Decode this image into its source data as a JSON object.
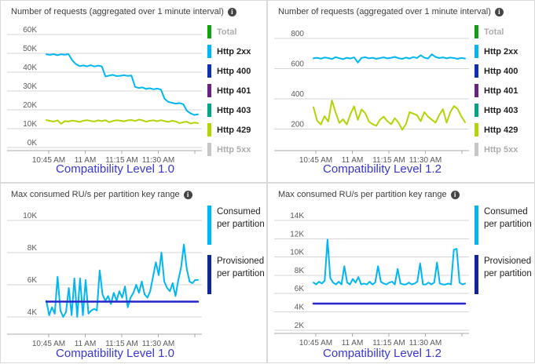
{
  "info_glyph": "i",
  "chart_data": [
    {
      "type": "line",
      "title": "Number of requests (aggregated over 1 minute interval)",
      "caption": "Compatibility Level 1.0",
      "x_tick_labels": [
        "10:45 AM",
        "11 AM",
        "11:15 AM",
        "11:30 AM"
      ],
      "y_tick_labels": [
        "60K",
        "50K",
        "40K",
        "30K",
        "20K",
        "10K",
        "0K"
      ],
      "y_top": 60000,
      "y_step": 10000,
      "legend": [
        {
          "label": "Total",
          "color": "#11a011",
          "dimmed": true
        },
        {
          "label": "Http 2xx",
          "color": "#00b7f2",
          "dimmed": false
        },
        {
          "label": "Http 400",
          "color": "#0b30b5",
          "dimmed": false
        },
        {
          "label": "Http 401",
          "color": "#6a2181",
          "dimmed": false
        },
        {
          "label": "Http 403",
          "color": "#00a583",
          "dimmed": false
        },
        {
          "label": "Http 429",
          "color": "#b6d308",
          "dimmed": false
        },
        {
          "label": "Http 5xx",
          "color": "#c6c6c6",
          "dimmed": true
        }
      ],
      "series": [
        {
          "name": "Http 2xx",
          "color": "#00b7f2",
          "width": 2,
          "values": [
            49500,
            49200,
            49600,
            49000,
            49500,
            49300,
            49600,
            46300,
            44300,
            43200,
            43600,
            43100,
            43700,
            43000,
            43500,
            43100,
            37700,
            38200,
            38600,
            37900,
            38100,
            38400,
            38000,
            38200,
            32200,
            31600,
            31900,
            31100,
            31500,
            30900,
            31300,
            30700,
            25800,
            24200,
            23700,
            23300,
            23600,
            23000,
            19500,
            18100,
            17300,
            17600
          ]
        },
        {
          "name": "Http 429",
          "color": "#b6d308",
          "width": 2,
          "values": [
            14600,
            14100,
            13800,
            14400,
            12600,
            14000,
            13800,
            14300,
            14000,
            13600,
            14200,
            14500,
            14100,
            13800,
            14400,
            14000,
            14500,
            13400,
            14100,
            14500,
            14200,
            13900,
            14400,
            14600,
            14100,
            14800,
            14400,
            13700,
            14200,
            14400,
            13900,
            14500,
            14000,
            13600,
            14200,
            13800,
            12900,
            13400,
            13700,
            12700,
            13200,
            12900
          ]
        }
      ]
    },
    {
      "type": "line",
      "title": "Number of requests (aggregated over 1 minute interval)",
      "caption": "Compatibility Level 1.2",
      "x_tick_labels": [
        "10:45 AM",
        "11 AM",
        "11:15 AM",
        "11:30 AM"
      ],
      "y_tick_labels": [
        "800",
        "600",
        "400",
        "200"
      ],
      "y_top": 800,
      "y_step": 200,
      "legend": [
        {
          "label": "Total",
          "color": "#11a011",
          "dimmed": true
        },
        {
          "label": "Http 2xx",
          "color": "#00b7f2",
          "dimmed": false
        },
        {
          "label": "Http 400",
          "color": "#0b30b5",
          "dimmed": false
        },
        {
          "label": "Http 401",
          "color": "#6a2181",
          "dimmed": false
        },
        {
          "label": "Http 403",
          "color": "#00a583",
          "dimmed": false
        },
        {
          "label": "Http 429",
          "color": "#b6d308",
          "dimmed": false
        },
        {
          "label": "Http 5xx",
          "color": "#c6c6c6",
          "dimmed": true
        }
      ],
      "series": [
        {
          "name": "Http 2xx",
          "color": "#00b7f2",
          "width": 2,
          "values": [
            668,
            672,
            666,
            674,
            670,
            664,
            676,
            669,
            663,
            672,
            667,
            675,
            640,
            671,
            676,
            668,
            672,
            665,
            670,
            675,
            668,
            672,
            678,
            669,
            665,
            673,
            667,
            677,
            670,
            689,
            672,
            667,
            695,
            678,
            670,
            675,
            668,
            673,
            670,
            665,
            671,
            667
          ]
        },
        {
          "name": "Http 429",
          "color": "#b6d308",
          "width": 2,
          "values": [
            345,
            255,
            230,
            285,
            250,
            390,
            310,
            240,
            265,
            230,
            300,
            350,
            260,
            330,
            305,
            250,
            232,
            222,
            262,
            282,
            252,
            232,
            272,
            242,
            196,
            232,
            312,
            302,
            292,
            252,
            312,
            282,
            262,
            242,
            292,
            332,
            242,
            312,
            352,
            332,
            282,
            245
          ]
        }
      ]
    },
    {
      "type": "line",
      "title": "Max consumed RU/s per partition key range",
      "caption": "Compatibility Level 1.0",
      "x_tick_labels": [
        "10:45 AM",
        "11 AM",
        "11:15 AM",
        "11:30 AM"
      ],
      "y_tick_labels": [
        "10K",
        "8K",
        "6K",
        "4K"
      ],
      "y_top": 10000,
      "y_step": 2000,
      "legend": [
        {
          "label": "Consumed per partition",
          "color": "#00b7f2",
          "dimmed": false
        },
        {
          "label": "Provisioned per partition",
          "color": "#10249b",
          "dimmed": false
        }
      ],
      "series": [
        {
          "name": "Consumed per partition",
          "color": "#00b7f2",
          "width": 2,
          "values": [
            5000,
            4100,
            4600,
            4200,
            6500,
            4400,
            4000,
            4300,
            5800,
            4100,
            6400,
            4000,
            6400,
            4100,
            6300,
            4200,
            4400,
            4500,
            4400,
            6900,
            5400,
            5000,
            5300,
            4800,
            5500,
            5000,
            5600,
            5200,
            5900,
            4600,
            5200,
            5500,
            6000,
            5500,
            6200,
            5400,
            5200,
            5600,
            6500,
            7400,
            6600,
            8000,
            6200,
            5800,
            5600,
            6100,
            5300,
            6300,
            7100,
            8500,
            7000,
            6200,
            6100,
            6300,
            6300
          ]
        },
        {
          "name": "Provisioned per partition",
          "color": "#2525cc",
          "width": 2.5,
          "values": [
            4950,
            4950
          ]
        }
      ]
    },
    {
      "type": "line",
      "title": "Max consumed RU/s per partition key range",
      "caption": "Compatibility Level 1.2",
      "x_tick_labels": [
        "10:45 AM",
        "11 AM",
        "11:15 AM",
        "11:30 AM"
      ],
      "y_tick_labels": [
        "14K",
        "12K",
        "10K",
        "8K",
        "6K",
        "4K",
        "2K"
      ],
      "y_top": 14000,
      "y_step": 2000,
      "legend": [
        {
          "label": "Consumed per partition",
          "color": "#00b7f2",
          "dimmed": false
        },
        {
          "label": "Provisioned per partition",
          "color": "#10249b",
          "dimmed": false
        }
      ],
      "series": [
        {
          "name": "Consumed per partition",
          "color": "#00b7f2",
          "width": 2,
          "values": [
            7200,
            7000,
            7300,
            7100,
            7400,
            11900,
            7700,
            7200,
            7000,
            7300,
            7000,
            9000,
            7200,
            7000,
            7600,
            7200,
            7800,
            7000,
            7100,
            7000,
            7300,
            7000,
            7200,
            9000,
            7300,
            7100,
            7000,
            7200,
            7300,
            7000,
            8700,
            7100,
            7000,
            7000,
            7200,
            7000,
            7100,
            7300,
            9300,
            7000,
            7000,
            7200,
            7000,
            7200,
            9400,
            7100,
            7000,
            7000,
            7100,
            7000,
            10800,
            10900,
            7200,
            7000,
            7100
          ]
        },
        {
          "name": "Provisioned per partition",
          "color": "#2525cc",
          "width": 2.5,
          "values": [
            4900,
            4900
          ]
        }
      ]
    }
  ]
}
